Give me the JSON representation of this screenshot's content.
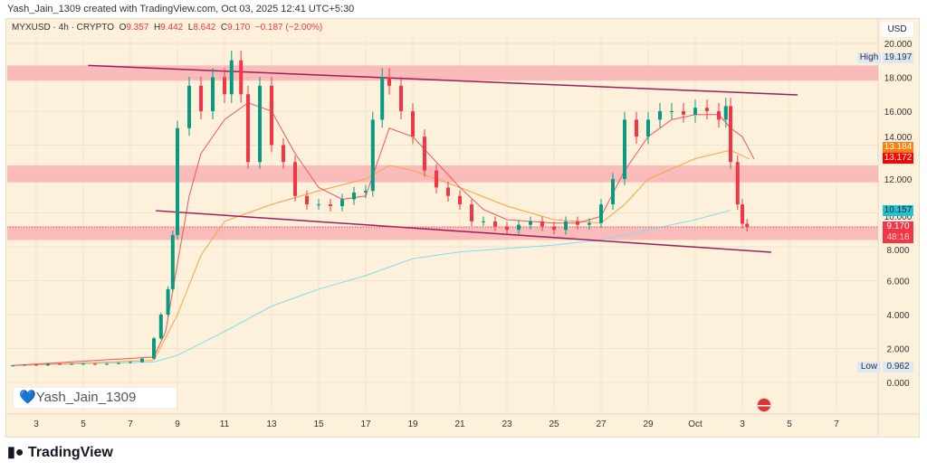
{
  "header": {
    "credit": "Yash_Jain_1309 created with TradingView.com, Oct 03, 2025 12:41 UTC+5:30"
  },
  "legend": {
    "symbol": "MYXUSD · 4h · CRYPTO",
    "o_label": "O",
    "o": "9.357",
    "h_label": "H",
    "h": "9.442",
    "l_label": "L",
    "l": "8.642",
    "c_label": "C",
    "c": "9.170",
    "change": "−0.187 (−2.00%)"
  },
  "price_axis": {
    "currency": "USD",
    "high_label": "High",
    "high": "19.197",
    "low_label": "Low",
    "low": "0.962",
    "tags": {
      "ema_orange": "13.184",
      "ema_red": "13.172",
      "ema_teal": "10.157",
      "last": "9.170",
      "countdown": "48:18"
    }
  },
  "watermark": "Yash_Jain_1309",
  "footer": {
    "brand": "TradingView"
  },
  "colors": {
    "up": "#089981",
    "down": "#f23645",
    "ema_fast": "#f7525f",
    "ema_mid": "#ff9f43",
    "ema_slow": "#80deea",
    "trend": "#9c1f5d",
    "zone": "#f7a0a8"
  },
  "chart_data": {
    "type": "candlestick",
    "title": "MYXUSD 4h",
    "ylim": [
      -1.7,
      21
    ],
    "yticks": [
      0,
      2,
      4,
      6,
      8,
      10,
      12,
      14,
      16,
      18,
      20
    ],
    "ytick_labels": [
      "0.000",
      "2.000",
      "4.000",
      "6.000",
      "8.000",
      "10.000",
      "12.000",
      "14.000",
      "16.000",
      "18.000",
      "20.000"
    ],
    "xticks": [
      {
        "day": 3,
        "label": "3"
      },
      {
        "day": 5,
        "label": "5"
      },
      {
        "day": 7,
        "label": "7"
      },
      {
        "day": 9,
        "label": "9"
      },
      {
        "day": 11,
        "label": "11"
      },
      {
        "day": 13,
        "label": "13"
      },
      {
        "day": 15,
        "label": "15"
      },
      {
        "day": 17,
        "label": "17"
      },
      {
        "day": 19,
        "label": "19"
      },
      {
        "day": 21,
        "label": "21"
      },
      {
        "day": 23,
        "label": "23"
      },
      {
        "day": 25,
        "label": "25"
      },
      {
        "day": 27,
        "label": "27"
      },
      {
        "day": 29,
        "label": "29"
      },
      {
        "day": 31,
        "label": "Oct"
      },
      {
        "day": 33,
        "label": "3"
      },
      {
        "day": 35,
        "label": "5"
      },
      {
        "day": 37,
        "label": "7"
      }
    ],
    "closes": [
      [
        2,
        1.0
      ],
      [
        2.5,
        1.05
      ],
      [
        3,
        1.0
      ],
      [
        3.5,
        1.1
      ],
      [
        4,
        1.05
      ],
      [
        4.5,
        1.1
      ],
      [
        5,
        1.1
      ],
      [
        5.5,
        1.05
      ],
      [
        6,
        1.1
      ],
      [
        6.5,
        1.15
      ],
      [
        7,
        1.2
      ],
      [
        7.5,
        1.4
      ],
      [
        8,
        2.6
      ],
      [
        8.3,
        4.0
      ],
      [
        8.6,
        5.5
      ],
      [
        8.8,
        8.7
      ],
      [
        9,
        15
      ],
      [
        9.5,
        17.5
      ],
      [
        10,
        16
      ],
      [
        10.5,
        18
      ],
      [
        11,
        17
      ],
      [
        11.3,
        19
      ],
      [
        11.7,
        17
      ],
      [
        12,
        13
      ],
      [
        12.5,
        17.5
      ],
      [
        13,
        14
      ],
      [
        13.5,
        13
      ],
      [
        14,
        11
      ],
      [
        14.5,
        10.5
      ],
      [
        15,
        10.5
      ],
      [
        15.5,
        10.4
      ],
      [
        16,
        10.8
      ],
      [
        16.5,
        11.2
      ],
      [
        17,
        11.3
      ],
      [
        17.3,
        15.5
      ],
      [
        17.7,
        18
      ],
      [
        18,
        17.5
      ],
      [
        18.5,
        16
      ],
      [
        19,
        14.5
      ],
      [
        19.5,
        12.5
      ],
      [
        20,
        11.5
      ],
      [
        20.5,
        11
      ],
      [
        21,
        10.5
      ],
      [
        21.5,
        9.5
      ],
      [
        22,
        9.5
      ],
      [
        22.5,
        9.2
      ],
      [
        23,
        9.0
      ],
      [
        23.5,
        9.3
      ],
      [
        24,
        9.5
      ],
      [
        24.5,
        9.2
      ],
      [
        25,
        9.0
      ],
      [
        25.5,
        9.5
      ],
      [
        26,
        9.3
      ],
      [
        26.5,
        9.4
      ],
      [
        27,
        10.5
      ],
      [
        27.5,
        12
      ],
      [
        28,
        15.5
      ],
      [
        28.5,
        14.5
      ],
      [
        29,
        15.5
      ],
      [
        29.5,
        16
      ],
      [
        30,
        16
      ],
      [
        30.5,
        15.8
      ],
      [
        31,
        16.2
      ],
      [
        31.5,
        16
      ],
      [
        32,
        15.5
      ],
      [
        32.3,
        16.3
      ],
      [
        32.5,
        13
      ],
      [
        32.8,
        10.5
      ],
      [
        33,
        9.36
      ],
      [
        33.2,
        9.17
      ]
    ],
    "ma_fast": [
      [
        2,
        1.0
      ],
      [
        8,
        1.5
      ],
      [
        8.5,
        3
      ],
      [
        9,
        7
      ],
      [
        9.5,
        11
      ],
      [
        10,
        13.5
      ],
      [
        11,
        15.5
      ],
      [
        12,
        16.5
      ],
      [
        13,
        16
      ],
      [
        14,
        13.5
      ],
      [
        15,
        11.5
      ],
      [
        16,
        10.8
      ],
      [
        17,
        11
      ],
      [
        17.5,
        13
      ],
      [
        18,
        15
      ],
      [
        19,
        14.5
      ],
      [
        20,
        13
      ],
      [
        21,
        11.5
      ],
      [
        22,
        10.2
      ],
      [
        23,
        9.6
      ],
      [
        24,
        9.5
      ],
      [
        25,
        9.4
      ],
      [
        26,
        9.4
      ],
      [
        27,
        9.8
      ],
      [
        28,
        12.5
      ],
      [
        29,
        14.5
      ],
      [
        30,
        15.5
      ],
      [
        31,
        15.8
      ],
      [
        32,
        15.8
      ],
      [
        32.5,
        15
      ],
      [
        33,
        14.5
      ],
      [
        33.5,
        13.17
      ]
    ],
    "ma_mid": [
      [
        2,
        1.0
      ],
      [
        8,
        1.3
      ],
      [
        9,
        4
      ],
      [
        10,
        7.5
      ],
      [
        11,
        9.5
      ],
      [
        13,
        10.5
      ],
      [
        15,
        11.3
      ],
      [
        17,
        12.0
      ],
      [
        18,
        12.8
      ],
      [
        19,
        12.5
      ],
      [
        21,
        11.5
      ],
      [
        23,
        10.4
      ],
      [
        25,
        9.6
      ],
      [
        27,
        9.4
      ],
      [
        28,
        10.5
      ],
      [
        29,
        12
      ],
      [
        31,
        13.2
      ],
      [
        32.5,
        13.7
      ],
      [
        33.3,
        13.184
      ]
    ],
    "ma_slow": [
      [
        2,
        1.0
      ],
      [
        8,
        1.2
      ],
      [
        9,
        1.6
      ],
      [
        11,
        3
      ],
      [
        13,
        4.5
      ],
      [
        15,
        5.5
      ],
      [
        17,
        6.3
      ],
      [
        19,
        7.3
      ],
      [
        21,
        7.7
      ],
      [
        23,
        7.9
      ],
      [
        25,
        8.1
      ],
      [
        27,
        8.4
      ],
      [
        29,
        9.0
      ],
      [
        31,
        9.6
      ],
      [
        32.5,
        10.157
      ]
    ],
    "trendlines": [
      [
        [
          5.2,
          18.7
        ],
        [
          35.35,
          16.96
        ]
      ],
      [
        [
          8.08,
          10.13
        ],
        [
          34.23,
          7.68
        ]
      ]
    ],
    "zones": [
      [
        17.8,
        18.7
      ],
      [
        11.8,
        12.8
      ],
      [
        8.4,
        9.2
      ]
    ]
  }
}
